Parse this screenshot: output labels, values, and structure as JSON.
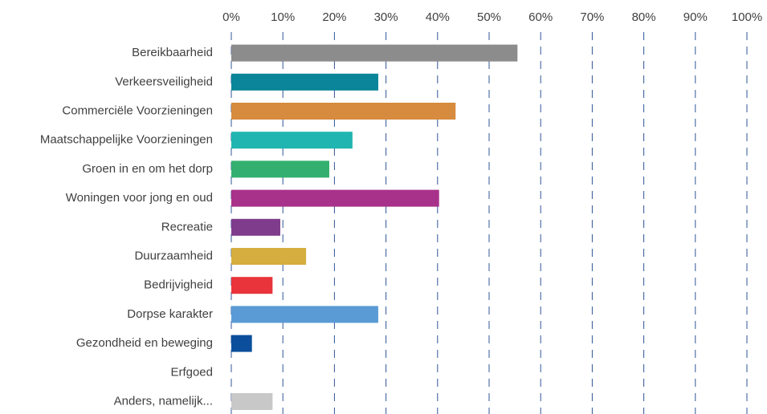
{
  "chart_data": {
    "type": "barh",
    "categories": [
      "Bereikbaarheid",
      "Verkeersveiligheid",
      "Commerciële Voorzieningen",
      "Maatschappelijke Voorzieningen",
      "Groen in en om het dorp",
      "Woningen voor jong en oud",
      "Recreatie",
      "Duurzaamheid",
      "Bedrijvigheid",
      "Dorpse karakter",
      "Gezondheid en beweging",
      "Erfgoed",
      "Anders, namelijk..."
    ],
    "values": [
      55.5,
      28.5,
      43.5,
      23.5,
      19,
      40.3,
      9.5,
      14.5,
      8,
      28.5,
      4,
      0,
      8
    ],
    "colors": [
      "#8c8c8c",
      "#0a8599",
      "#d68b3e",
      "#20b5b0",
      "#33b06f",
      "#a8318a",
      "#7f3c8d",
      "#d4ae3e",
      "#e8343a",
      "#5b9bd5",
      "#0b4f9c",
      "#7f7f7f",
      "#c8c8c8"
    ],
    "xlim": [
      0,
      100
    ],
    "xticks": [
      {
        "value": 0,
        "label": "0%"
      },
      {
        "value": 10,
        "label": "10%"
      },
      {
        "value": 20,
        "label": "20%"
      },
      {
        "value": 30,
        "label": "30%"
      },
      {
        "value": 40,
        "label": "40%"
      },
      {
        "value": 50,
        "label": "50%"
      },
      {
        "value": 60,
        "label": "60%"
      },
      {
        "value": 70,
        "label": "70%"
      },
      {
        "value": 80,
        "label": "80%"
      },
      {
        "value": 90,
        "label": "90%"
      },
      {
        "value": 100,
        "label": "100%"
      }
    ],
    "grid": true,
    "axis_position": "top"
  }
}
